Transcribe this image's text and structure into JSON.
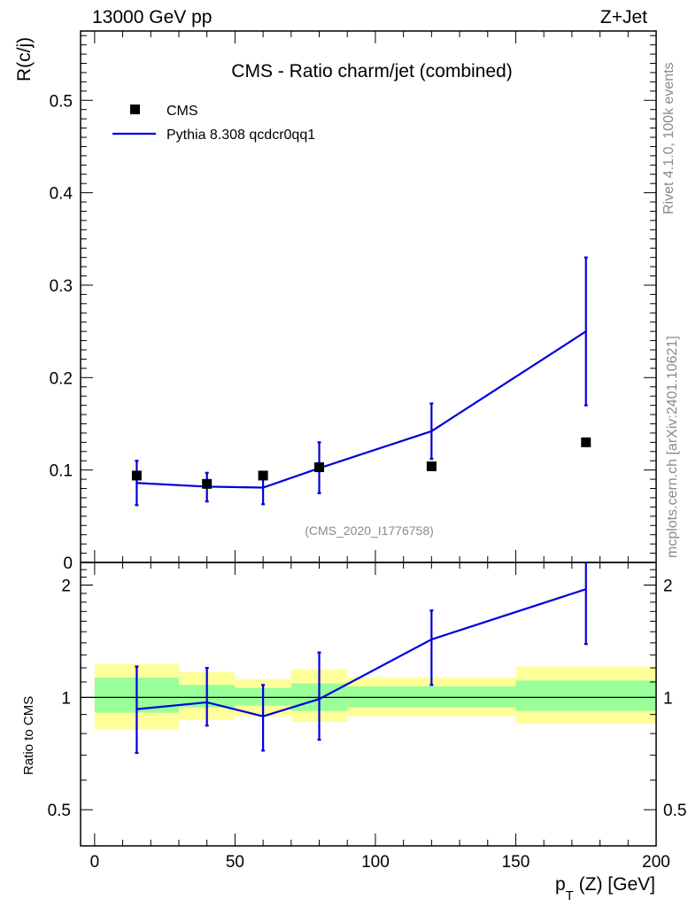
{
  "header": {
    "left": "13000 GeV pp",
    "right": "Z+Jet"
  },
  "side_text": {
    "rivet": "Rivet 4.1.0,  100k events",
    "source": "mcplots.cern.ch [arXiv:2401.10621]"
  },
  "colors": {
    "mc_line": "#0000dd",
    "data_marker": "#000000",
    "band_inner": "#99ff99",
    "band_outer": "#ffff99"
  },
  "chart_data": [
    {
      "type": "scatter",
      "title": "CMS - Ratio charm/jet (combined)",
      "ylabel": "R(c/j)",
      "xlabel": "p_T (Z) [GeV]",
      "xlabel_main": "p",
      "xlabel_sub": "T",
      "xlabel_rest": " (Z) [GeV]",
      "watermark": "(CMS_2020_I1776758)",
      "xlim": [
        -5,
        200
      ],
      "ylim": [
        0,
        0.575
      ],
      "yticks": [
        0,
        0.1,
        0.2,
        0.3,
        0.4,
        0.5
      ],
      "ytick_labels": [
        "0",
        "0.1",
        "0.2",
        "0.3",
        "0.4",
        "0.5"
      ],
      "legend": {
        "position": "top-left",
        "data_label": "CMS",
        "mc_label": "Pythia 8.308 qcdcr0qq1"
      },
      "series": [
        {
          "name": "CMS",
          "kind": "markers",
          "x": [
            15,
            40,
            60,
            80,
            120,
            175
          ],
          "values": [
            0.094,
            0.085,
            0.094,
            0.103,
            0.104,
            0.13
          ]
        },
        {
          "name": "Pythia 8.308 qcdcr0qq1",
          "kind": "line",
          "x": [
            15,
            40,
            60,
            80,
            120,
            175
          ],
          "values": [
            0.086,
            0.082,
            0.081,
            0.102,
            0.142,
            0.25
          ],
          "err_low": [
            0.062,
            0.066,
            0.063,
            0.075,
            0.112,
            0.17
          ],
          "err_high": [
            0.11,
            0.097,
            0.095,
            0.13,
            0.172,
            0.33
          ]
        }
      ]
    },
    {
      "type": "line",
      "ylabel": "Ratio to CMS",
      "yscale": "log",
      "ylim": [
        0.4,
        2.3
      ],
      "yticks": [
        0.5,
        1,
        2
      ],
      "ytick_labels": [
        "0.5",
        "1",
        "2"
      ],
      "x_ticks": [
        0,
        50,
        100,
        150,
        200
      ],
      "x_tick_labels": [
        "0",
        "50",
        "100",
        "150",
        "200"
      ],
      "bins": [
        {
          "lo": 0,
          "hi": 30,
          "inner": [
            0.91,
            1.13
          ],
          "outer": [
            0.82,
            1.23
          ]
        },
        {
          "lo": 30,
          "hi": 50,
          "inner": [
            0.94,
            1.08
          ],
          "outer": [
            0.87,
            1.17
          ]
        },
        {
          "lo": 50,
          "hi": 70,
          "inner": [
            0.95,
            1.06
          ],
          "outer": [
            0.89,
            1.12
          ]
        },
        {
          "lo": 70,
          "hi": 90,
          "inner": [
            0.92,
            1.09
          ],
          "outer": [
            0.86,
            1.19
          ]
        },
        {
          "lo": 90,
          "hi": 150,
          "inner": [
            0.94,
            1.07
          ],
          "outer": [
            0.89,
            1.13
          ]
        },
        {
          "lo": 150,
          "hi": 200,
          "inner": [
            0.92,
            1.11
          ],
          "outer": [
            0.85,
            1.21
          ]
        }
      ],
      "series": [
        {
          "name": "Pythia 8.308 qcdcr0qq1",
          "x": [
            15,
            40,
            60,
            80,
            120,
            175
          ],
          "values": [
            0.93,
            0.97,
            0.89,
            0.99,
            1.43,
            1.95
          ],
          "err_low": [
            0.71,
            0.84,
            0.72,
            0.77,
            1.08,
            1.39
          ],
          "err_high": [
            1.21,
            1.2,
            1.08,
            1.32,
            1.71,
            2.4
          ]
        }
      ]
    }
  ]
}
